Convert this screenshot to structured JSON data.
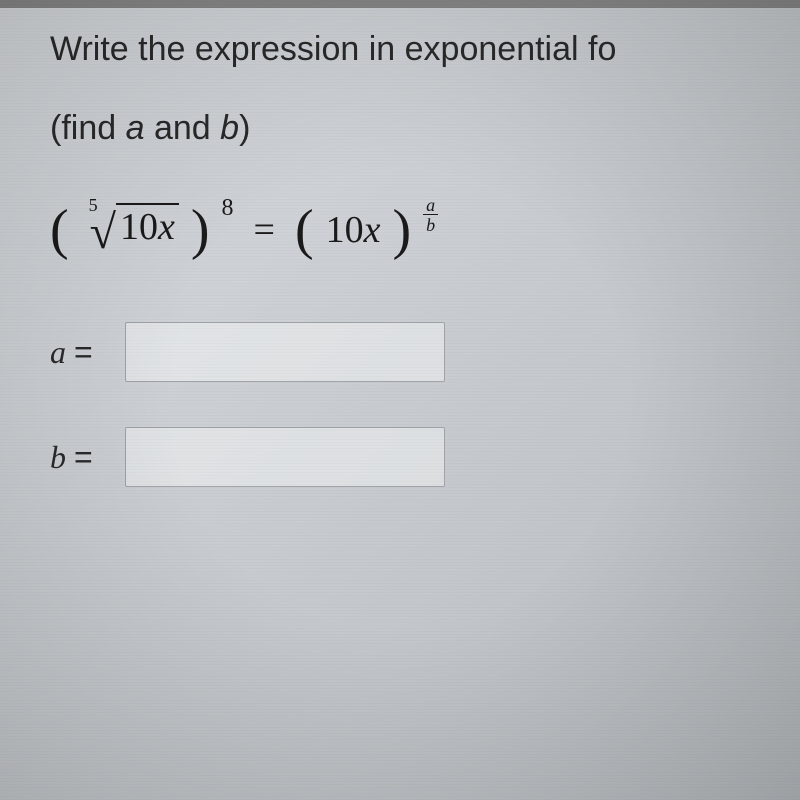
{
  "question": {
    "main_text": "Write the expression in exponential fo",
    "sub_text_prefix": "(find ",
    "sub_text_var_a": "a",
    "sub_text_and": " and ",
    "sub_text_var_b": "b",
    "sub_text_suffix": ")"
  },
  "equation": {
    "root_index": "5",
    "radicand_coef": "10",
    "radicand_var": "x",
    "outer_exponent": "8",
    "equals": "=",
    "rhs_coef": "10",
    "rhs_var": "x",
    "frac_numerator": "a",
    "frac_denominator": "b"
  },
  "answers": {
    "a_label": "a",
    "a_equals": "=",
    "a_value": "",
    "b_label": "b",
    "b_equals": "=",
    "b_value": ""
  },
  "styling": {
    "background_gradient_start": "#d8dce0",
    "background_gradient_end": "#b8bcc0",
    "text_color": "#2a2a2a",
    "equation_color": "#1a1a1a",
    "input_border": "#a0a4a8",
    "input_bg": "rgba(255,255,255,0.4)",
    "question_fontsize": 34,
    "equation_fontsize": 42,
    "input_width": 320,
    "input_height": 60
  }
}
